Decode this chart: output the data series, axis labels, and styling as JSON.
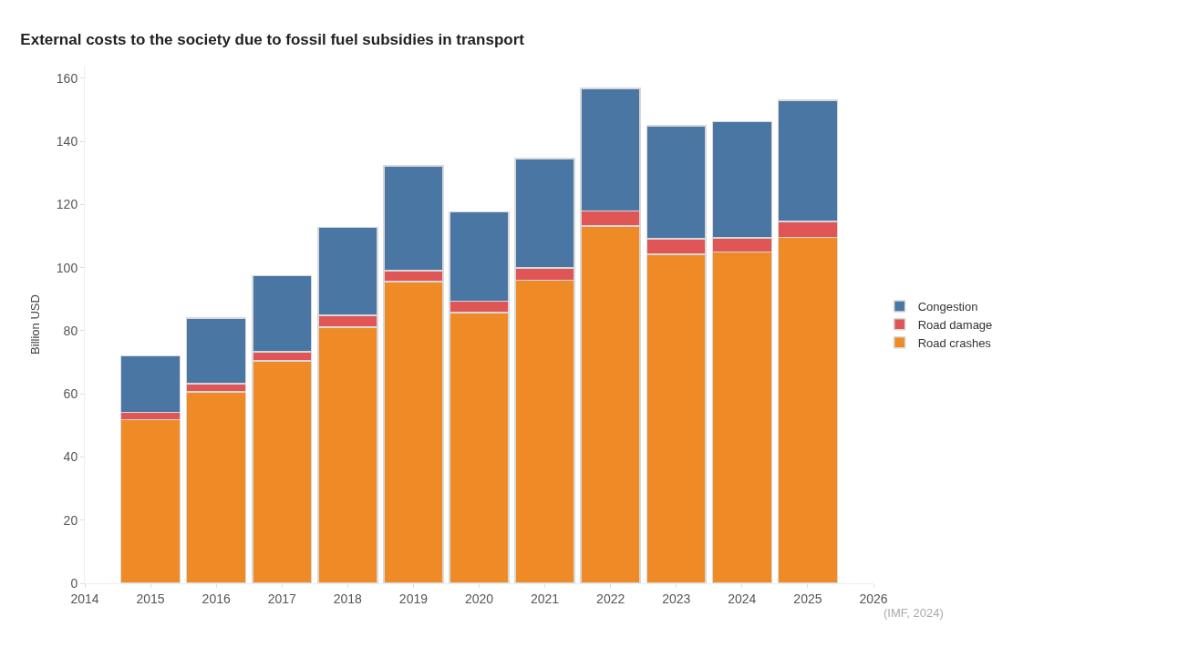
{
  "chart_data": {
    "type": "bar",
    "title": "External costs to the society due to fossil fuel subsidies in transport",
    "ylabel": "Billion USD",
    "x": [
      2015,
      2016,
      2017,
      2018,
      2019,
      2020,
      2021,
      2022,
      2023,
      2024,
      2025
    ],
    "series": [
      {
        "name": "Road crashes",
        "color": "#ef8b27",
        "values": [
          51.9,
          60.7,
          70.5,
          81.2,
          95.6,
          85.7,
          96.0,
          113.2,
          104.3,
          104.9,
          109.6
        ]
      },
      {
        "name": "Road damage",
        "color": "#e05555",
        "values": [
          2.3,
          2.5,
          2.8,
          3.7,
          3.5,
          3.7,
          3.9,
          4.8,
          4.8,
          4.6,
          5.1
        ]
      },
      {
        "name": "Congestion",
        "color": "#4a76a4",
        "values": [
          17.8,
          20.8,
          24.1,
          27.8,
          33.1,
          28.2,
          34.6,
          38.8,
          35.8,
          36.7,
          38.3
        ]
      }
    ],
    "stacked": true,
    "xlim": [
      2014,
      2026
    ],
    "xticks": [
      2014,
      2015,
      2016,
      2017,
      2018,
      2019,
      2020,
      2021,
      2022,
      2023,
      2024,
      2025,
      2026
    ],
    "ylim": [
      0,
      164
    ],
    "yticks": [
      0,
      20,
      40,
      60,
      80,
      100,
      120,
      140,
      160
    ],
    "legend": "right",
    "annotations": [
      "(IMF, 2024)"
    ]
  }
}
